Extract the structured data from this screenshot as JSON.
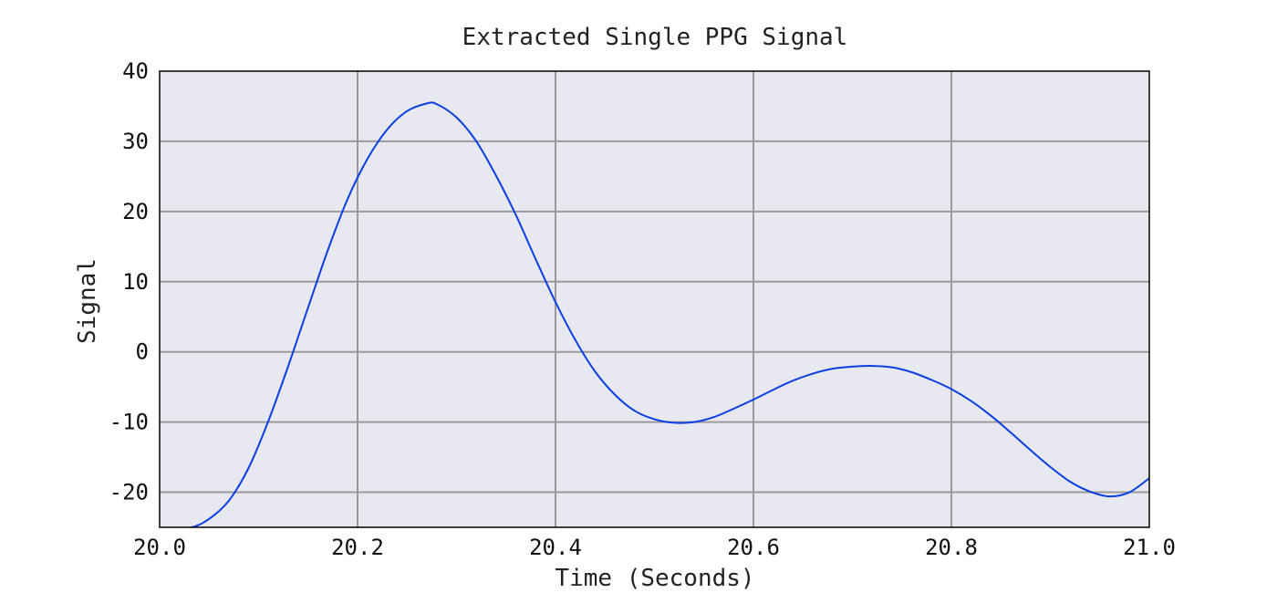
{
  "chart_data": {
    "type": "line",
    "title": "Extracted Single PPG Signal",
    "xlabel": "Time (Seconds)",
    "ylabel": "Signal",
    "xlim": [
      20.0,
      21.0
    ],
    "ylim": [
      -25,
      40
    ],
    "xticks": [
      20.0,
      20.2,
      20.4,
      20.6,
      20.8,
      21.0
    ],
    "xtick_labels": [
      "20.0",
      "20.2",
      "20.4",
      "20.6",
      "20.8",
      "21.0"
    ],
    "yticks": [
      -20,
      -10,
      0,
      10,
      20,
      30,
      40
    ],
    "ytick_labels": [
      "-20",
      "-10",
      "0",
      "10",
      "20",
      "30",
      "40"
    ],
    "grid": true,
    "colors": {
      "line": "#0a3fe6",
      "plot_background": "#e8e8f1",
      "grid": "#9a9a9a"
    },
    "series": [
      {
        "x": [
          20.0,
          20.03,
          20.05,
          20.07,
          20.09,
          20.11,
          20.13,
          20.15,
          20.17,
          20.19,
          20.21,
          20.23,
          20.25,
          20.27,
          20.28,
          20.3,
          20.32,
          20.34,
          20.36,
          20.38,
          20.4,
          20.42,
          20.44,
          20.46,
          20.48,
          20.5,
          20.52,
          20.54,
          20.56,
          20.58,
          20.6,
          20.62,
          20.64,
          20.66,
          20.68,
          20.7,
          20.72,
          20.74,
          20.76,
          20.78,
          20.8,
          20.82,
          20.84,
          20.86,
          20.88,
          20.9,
          20.92,
          20.94,
          20.96,
          20.98,
          21.0
        ],
        "y": [
          -25.4,
          -25.1,
          -23.8,
          -21.2,
          -16.5,
          -9.8,
          -2.0,
          6.3,
          14.5,
          21.8,
          27.5,
          31.7,
          34.3,
          35.4,
          35.3,
          33.4,
          30.0,
          25.1,
          19.5,
          13.2,
          7.1,
          1.7,
          -2.8,
          -6.1,
          -8.4,
          -9.6,
          -10.1,
          -10.0,
          -9.3,
          -8.1,
          -6.8,
          -5.4,
          -4.1,
          -3.1,
          -2.4,
          -2.1,
          -2.0,
          -2.2,
          -2.9,
          -4.0,
          -5.3,
          -7.0,
          -9.1,
          -11.5,
          -14.0,
          -16.4,
          -18.5,
          -19.9,
          -20.6,
          -20.0,
          -18.0
        ]
      }
    ]
  }
}
